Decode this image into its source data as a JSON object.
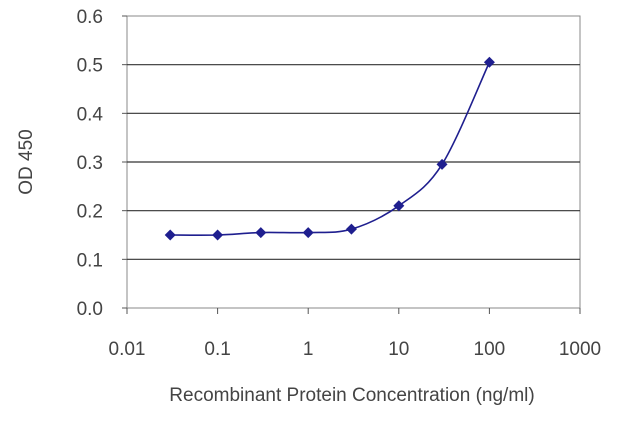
{
  "chart_data": {
    "type": "line",
    "xlabel": "Recombinant Protein Concentration (ng/ml)",
    "ylabel": "OD 450",
    "x_scale": "log",
    "xlim": [
      0.01,
      1000
    ],
    "ylim": [
      0,
      0.6
    ],
    "x_ticks": [
      "0.01",
      "0.1",
      "1",
      "10",
      "100",
      "1000"
    ],
    "y_ticks": [
      "0.0",
      "0.1",
      "0.2",
      "0.3",
      "0.4",
      "0.5",
      "0.6"
    ],
    "grid": "horizontal",
    "series": [
      {
        "color": "#1f1f8f",
        "marker": "diamond",
        "x": [
          0.03,
          0.1,
          0.3,
          1,
          3,
          10,
          30,
          100
        ],
        "y": [
          0.15,
          0.15,
          0.155,
          0.155,
          0.162,
          0.21,
          0.295,
          0.505
        ]
      }
    ]
  }
}
